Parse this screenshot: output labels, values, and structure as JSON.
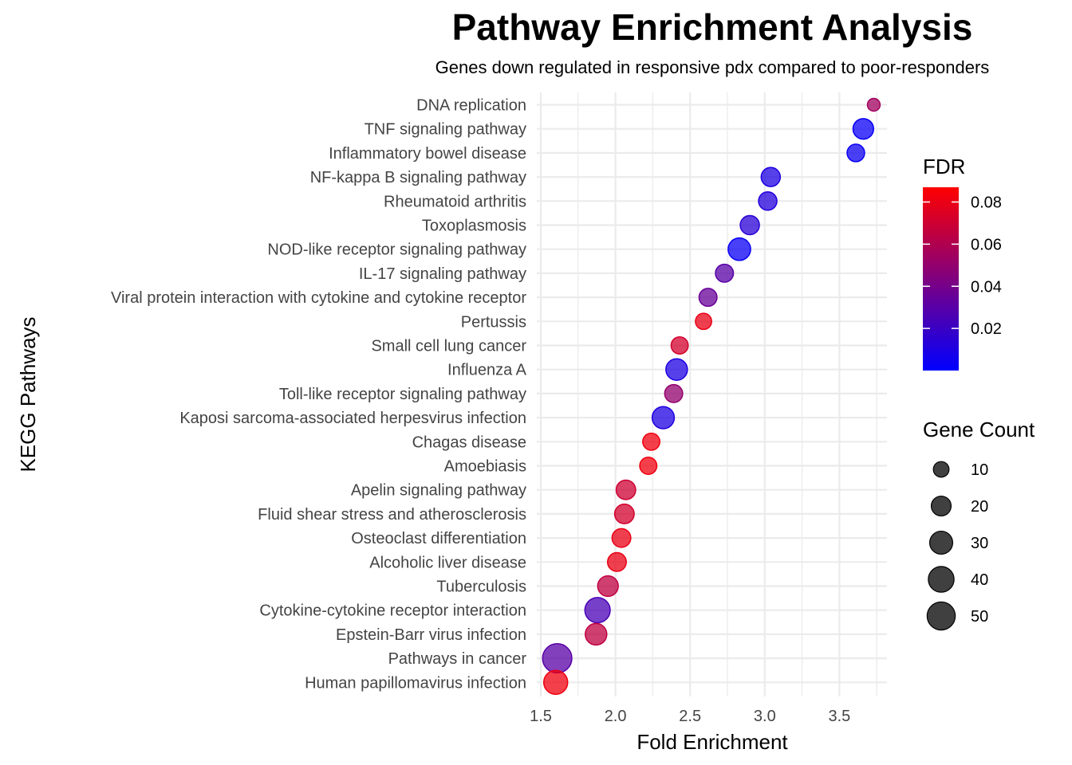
{
  "chart_data": {
    "type": "scatter",
    "title": "Pathway Enrichment Analysis",
    "subtitle": "Genes down regulated in responsive pdx compared to poor-responders",
    "xlabel": "Fold Enrichment",
    "ylabel": "KEGG Pathways",
    "xlim": [
      1.5,
      3.75
    ],
    "xticks": [
      "1.5",
      "2.0",
      "2.5",
      "3.0",
      "3.5"
    ],
    "grid": true,
    "color_scale": {
      "title": "FDR",
      "low": "#0000ff",
      "high": "#ff0000",
      "range": [
        0.0,
        0.087
      ],
      "ticks": [
        "0.02",
        "0.04",
        "0.06",
        "0.08"
      ],
      "tick_values": [
        0.02,
        0.04,
        0.06,
        0.08
      ]
    },
    "size_scale": {
      "title": "Gene Count",
      "ticks": [
        "10",
        "20",
        "30",
        "40",
        "50"
      ],
      "tick_values": [
        10,
        20,
        30,
        40,
        50
      ],
      "range": [
        5,
        55
      ]
    },
    "legend_position": "right",
    "points": [
      {
        "pathway": "DNA replication",
        "fold_enrichment": 3.73,
        "fdr": 0.055,
        "count": 5
      },
      {
        "pathway": "TNF signaling pathway",
        "fold_enrichment": 3.66,
        "fdr": 0.003,
        "count": 22
      },
      {
        "pathway": "Inflammatory bowel disease",
        "fold_enrichment": 3.61,
        "fdr": 0.004,
        "count": 14
      },
      {
        "pathway": "NF-kappa B signaling pathway",
        "fold_enrichment": 3.04,
        "fdr": 0.01,
        "count": 18
      },
      {
        "pathway": "Rheumatoid arthritis",
        "fold_enrichment": 3.02,
        "fdr": 0.012,
        "count": 16
      },
      {
        "pathway": "Toxoplasmosis",
        "fold_enrichment": 2.9,
        "fdr": 0.014,
        "count": 18
      },
      {
        "pathway": "NOD-like receptor signaling pathway",
        "fold_enrichment": 2.83,
        "fdr": 0.003,
        "count": 28
      },
      {
        "pathway": "IL-17 signaling pathway",
        "fold_enrichment": 2.73,
        "fdr": 0.03,
        "count": 15
      },
      {
        "pathway": "Viral protein interaction with cytokine and cytokine receptor",
        "fold_enrichment": 2.62,
        "fdr": 0.035,
        "count": 15
      },
      {
        "pathway": "Pertussis",
        "fold_enrichment": 2.59,
        "fdr": 0.08,
        "count": 11
      },
      {
        "pathway": "Small cell lung cancer",
        "fold_enrichment": 2.43,
        "fdr": 0.072,
        "count": 13
      },
      {
        "pathway": "Influenza A",
        "fold_enrichment": 2.41,
        "fdr": 0.01,
        "count": 25
      },
      {
        "pathway": "Toll-like receptor signaling pathway",
        "fold_enrichment": 2.39,
        "fdr": 0.05,
        "count": 15
      },
      {
        "pathway": "Kaposi sarcoma-associated herpesvirus infection",
        "fold_enrichment": 2.32,
        "fdr": 0.01,
        "count": 27
      },
      {
        "pathway": "Chagas disease",
        "fold_enrichment": 2.24,
        "fdr": 0.082,
        "count": 13
      },
      {
        "pathway": "Amoebiasis",
        "fold_enrichment": 2.22,
        "fdr": 0.082,
        "count": 13
      },
      {
        "pathway": "Apelin signaling pathway",
        "fold_enrichment": 2.07,
        "fdr": 0.07,
        "count": 19
      },
      {
        "pathway": "Fluid shear stress and atherosclerosis",
        "fold_enrichment": 2.06,
        "fdr": 0.072,
        "count": 19
      },
      {
        "pathway": "Osteoclast differentiation",
        "fold_enrichment": 2.04,
        "fdr": 0.08,
        "count": 17
      },
      {
        "pathway": "Alcoholic liver disease",
        "fold_enrichment": 2.01,
        "fdr": 0.08,
        "count": 17
      },
      {
        "pathway": "Tuberculosis",
        "fold_enrichment": 1.95,
        "fdr": 0.065,
        "count": 22
      },
      {
        "pathway": "Cytokine-cytokine receptor interaction",
        "fold_enrichment": 1.88,
        "fdr": 0.025,
        "count": 38
      },
      {
        "pathway": "Epstein-Barr virus infection",
        "fold_enrichment": 1.87,
        "fdr": 0.065,
        "count": 25
      },
      {
        "pathway": "Pathways in cancer",
        "fold_enrichment": 1.61,
        "fdr": 0.03,
        "count": 55
      },
      {
        "pathway": "Human papillomavirus infection",
        "fold_enrichment": 1.6,
        "fdr": 0.082,
        "count": 33
      }
    ]
  }
}
